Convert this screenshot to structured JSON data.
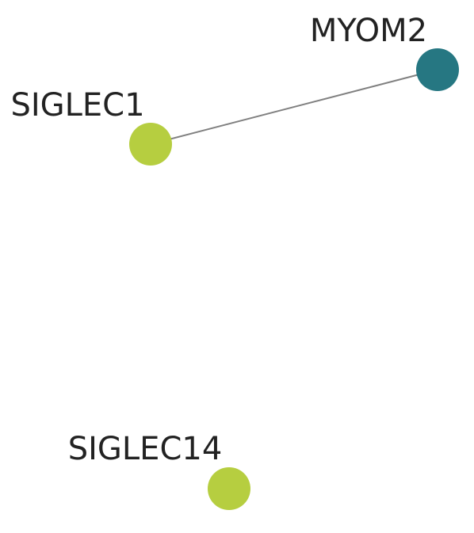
{
  "network": {
    "nodes": [
      {
        "id": "myom2",
        "label": "MYOM2",
        "color": "#267782"
      },
      {
        "id": "siglec1",
        "label": "SIGLEC1",
        "color": "#b6ce40"
      },
      {
        "id": "siglec14",
        "label": "SIGLEC14",
        "color": "#b6ce40"
      }
    ],
    "edges": [
      {
        "source": "siglec1",
        "target": "myom2",
        "color": "#808080"
      }
    ]
  }
}
